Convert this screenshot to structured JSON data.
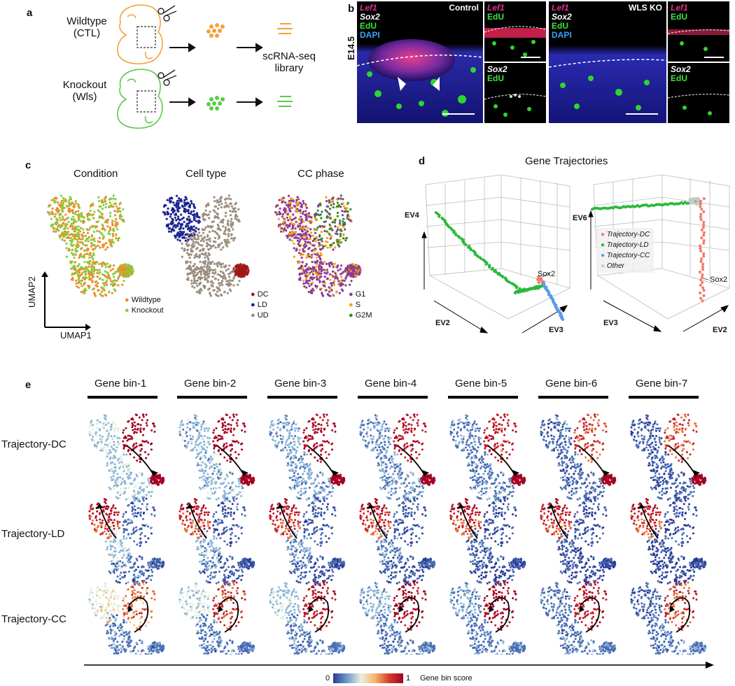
{
  "panel_a": {
    "letter": "a",
    "wildtype": "Wildtype",
    "ctl": "(CTL)",
    "knockout": "Knockout",
    "wls": "(Wls)",
    "library_line1": "scRNA-seq",
    "library_line2": "library",
    "colors": {
      "wildtype": "#f5a03c",
      "knockout": "#5cc94a"
    }
  },
  "panel_b": {
    "letter": "b",
    "stage": "E14.5",
    "control": {
      "lef1": "Lef1",
      "sox2": "Sox2",
      "edu": "EdU",
      "dapi": "DAPI",
      "title": "Control"
    },
    "control_inset_top": {
      "lef1": "Lef1",
      "edu": "EdU"
    },
    "control_inset_bot": {
      "sox2": "Sox2",
      "edu": "EdU"
    },
    "ko": {
      "lef1": "Lef1",
      "sox2": "Sox2",
      "edu": "EdU",
      "dapi": "DAPI",
      "title": "WLS KO"
    },
    "ko_inset_top": {
      "lef1": "Lef1",
      "edu": "EdU"
    },
    "ko_inset_bot": {
      "sox2": "Sox2",
      "edu": "EdU"
    },
    "colors": {
      "lef1": "#e0308a",
      "sox2": "#ffffff",
      "edu": "#3ee03e",
      "dapi": "#3aa0ff"
    }
  },
  "panel_c": {
    "letter": "c",
    "titles": [
      "Condition",
      "Cell type",
      "CC phase"
    ],
    "umap1": "UMAP1",
    "umap2": "UMAP2",
    "legend_condition": [
      {
        "label": "Wildtype",
        "color": "#f08a2a"
      },
      {
        "label": "Knockout",
        "color": "#7fd23e"
      }
    ],
    "legend_celltype": [
      {
        "label": "DC",
        "color": "#a01a1a"
      },
      {
        "label": "LD",
        "color": "#1c2590"
      },
      {
        "label": "UD",
        "color": "#9b8e80"
      }
    ],
    "legend_phase": [
      {
        "label": "G1",
        "color": "#8c3a96"
      },
      {
        "label": "S",
        "color": "#f0a21a"
      },
      {
        "label": "G2M",
        "color": "#2a8a2a"
      }
    ]
  },
  "panel_d": {
    "letter": "d",
    "title": "Gene Trajectories",
    "left": {
      "ev_vertical": "EV4",
      "ev_left": "EV2",
      "ev_right": "EV3",
      "gene": "Sox2"
    },
    "right": {
      "ev_vertical": "EV6",
      "ev_left": "EV3",
      "ev_right": "EV2",
      "gene": "Sox2"
    },
    "legend": [
      {
        "label": "Trajectory-DC",
        "color": "#f07a6a"
      },
      {
        "label": "Trajectory-LD",
        "color": "#2ab83a"
      },
      {
        "label": "Trajectory-CC",
        "color": "#5a9ae8"
      },
      {
        "label": "Other",
        "color": "#c8c8c8"
      }
    ]
  },
  "panel_e": {
    "letter": "e",
    "bins": [
      "Gene bin-1",
      "Gene bin-2",
      "Gene bin-3",
      "Gene bin-4",
      "Gene bin-5",
      "Gene bin-6",
      "Gene bin-7"
    ],
    "rows": [
      "Trajectory-DC",
      "Trajectory-LD",
      "Trajectory-CC"
    ],
    "scale_min": "0",
    "scale_max": "1",
    "scale_label": "Gene bin score"
  }
}
